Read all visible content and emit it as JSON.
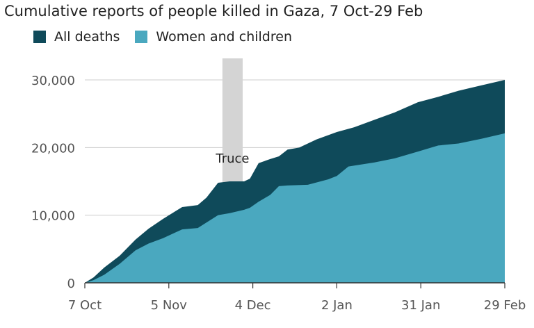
{
  "chart_data": {
    "type": "area",
    "title": "Cumulative reports of people killed in Gaza, 7 Oct-29 Feb",
    "x_unit": "days since 7 Oct",
    "xlim": [
      0,
      145
    ],
    "ylim": [
      0,
      30000
    ],
    "yticks": [
      0,
      10000,
      20000,
      30000
    ],
    "ytick_labels": [
      "0",
      "10,000",
      "20,000",
      "30,000"
    ],
    "xticks": [
      0,
      29,
      58,
      87,
      116,
      145
    ],
    "xtick_labels": [
      "7 Oct",
      "5 Nov",
      "4 Dec",
      "2 Jan",
      "31 Jan",
      "29 Feb"
    ],
    "annotation": {
      "label": "Truce",
      "x_start": 47.5,
      "x_end": 54.5
    },
    "legend_position": "top-left",
    "series": [
      {
        "name": "All deaths",
        "color": "#0f4a5a",
        "x": [
          0,
          3,
          6.7,
          12,
          17.5,
          22,
          27,
          33.6,
          39,
          42,
          46,
          50,
          55,
          57,
          60,
          64,
          67,
          70,
          74,
          80,
          87,
          93,
          100,
          107,
          115,
          122,
          129,
          137,
          145
        ],
        "y": [
          0,
          800,
          2260,
          4000,
          6400,
          8000,
          9450,
          11200,
          11500,
          12600,
          14800,
          15000,
          15000,
          15400,
          17700,
          18300,
          18700,
          19700,
          20000,
          21200,
          22300,
          23000,
          24100,
          25200,
          26700,
          27500,
          28400,
          29200,
          30000
        ]
      },
      {
        "name": "Women and children",
        "color": "#4aa8bf",
        "x": [
          0,
          3,
          6.7,
          12,
          17.5,
          22,
          27,
          33.6,
          39,
          46,
          50,
          55,
          57,
          60,
          64,
          67,
          70,
          77,
          84,
          87,
          91,
          100,
          107,
          115,
          122,
          129,
          137,
          145
        ],
        "y": [
          0,
          400,
          1200,
          2800,
          4800,
          5800,
          6600,
          7900,
          8100,
          10000,
          10300,
          10800,
          11100,
          12000,
          13000,
          14300,
          14400,
          14500,
          15300,
          15800,
          17200,
          17800,
          18400,
          19400,
          20300,
          20600,
          21300,
          22100
        ]
      }
    ]
  }
}
